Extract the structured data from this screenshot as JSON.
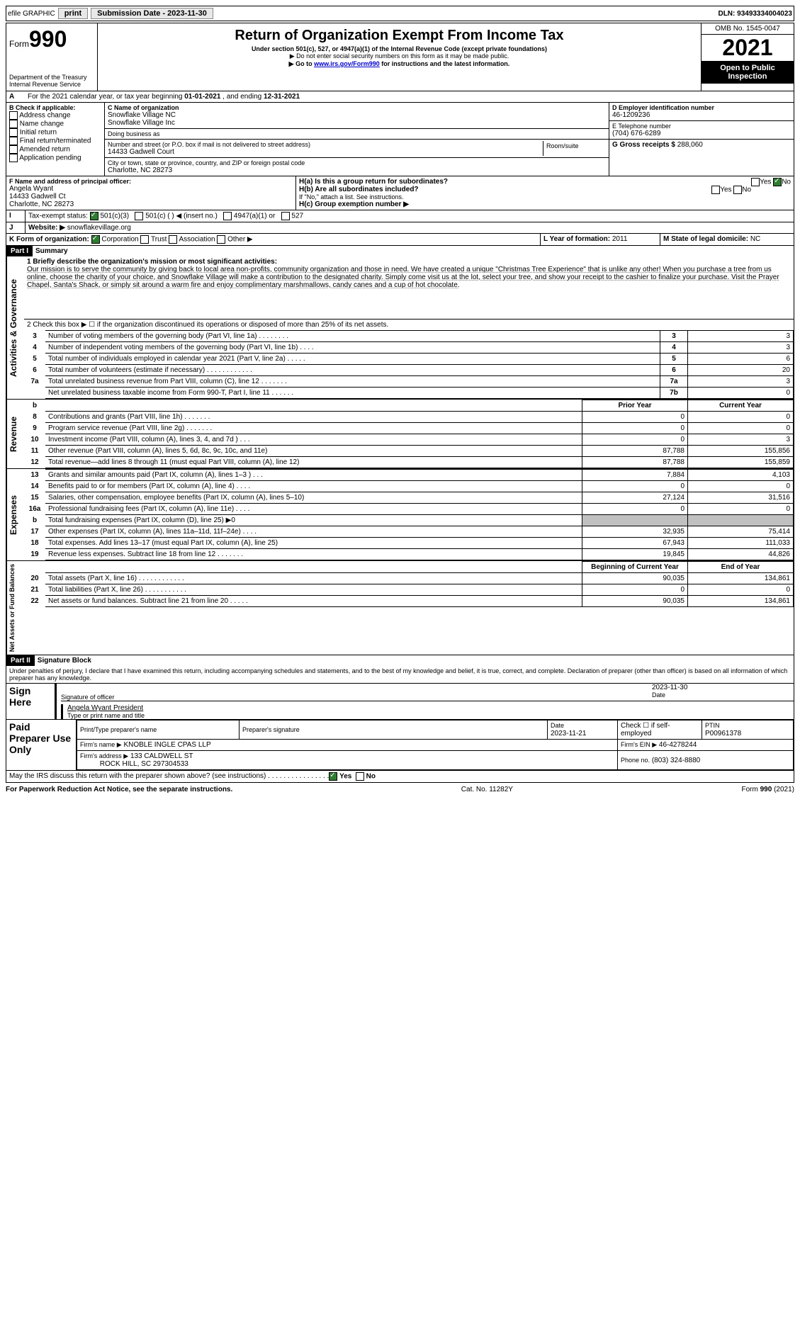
{
  "topbar": {
    "efile": "efile GRAPHIC",
    "print": "print",
    "submission_label": "Submission Date - 2023-11-30",
    "dln_label": "DLN: 93493334004023"
  },
  "header": {
    "form_word": "Form",
    "form_number": "990",
    "title": "Return of Organization Exempt From Income Tax",
    "subtitle": "Under section 501(c), 527, or 4947(a)(1) of the Internal Revenue Code (except private foundations)",
    "note1": "▶ Do not enter social security numbers on this form as it may be made public.",
    "note2_pre": "▶ Go to ",
    "note2_link": "www.irs.gov/Form990",
    "note2_post": " for instructions and the latest information.",
    "dept": "Department of the Treasury",
    "irs": "Internal Revenue Service",
    "omb": "OMB No. 1545-0047",
    "year": "2021",
    "open": "Open to Public Inspection"
  },
  "periodA": {
    "text_pre": "For the 2021 calendar year, or tax year beginning ",
    "begin": "01-01-2021",
    "mid": " , and ending ",
    "end": "12-31-2021"
  },
  "boxB": {
    "label": "B Check if applicable:",
    "items": [
      "Address change",
      "Name change",
      "Initial return",
      "Final return/terminated",
      "Amended return",
      "Application pending"
    ]
  },
  "boxC": {
    "label": "C Name of organization",
    "name1": "Snowflake Village NC",
    "name2": "Snowflake Village Inc",
    "dba": "Doing business as",
    "addr_label": "Number and street (or P.O. box if mail is not delivered to street address)",
    "addr": "14433 Gadwell Court",
    "room_label": "Room/suite",
    "city_label": "City or town, state or province, country, and ZIP or foreign postal code",
    "city": "Charlotte, NC  28273"
  },
  "boxD": {
    "label": "D Employer identification number",
    "value": "46-1209236"
  },
  "boxE": {
    "label": "E Telephone number",
    "value": "(704) 676-6289"
  },
  "boxG": {
    "label": "G Gross receipts $",
    "value": "288,060"
  },
  "boxF": {
    "label": "F  Name and address of principal officer:",
    "name": "Angela Wyant",
    "addr1": "14433 Gadwell Ct",
    "addr2": "Charlotte, NC  28273"
  },
  "boxH": {
    "ha_label": "H(a)  Is this a group return for subordinates?",
    "hb_label": "H(b)  Are all subordinates included?",
    "hb_note": "If \"No,\" attach a list. See instructions.",
    "hc_label": "H(c)  Group exemption number ▶",
    "yes": "Yes",
    "no": "No"
  },
  "taxExempt": {
    "label": "Tax-exempt status:",
    "c3": "501(c)(3)",
    "c": "501(c) (    ) ◀ (insert no.)",
    "a1": "4947(a)(1) or",
    "s527": "527"
  },
  "rowJ": {
    "label": "J",
    "website_label": "Website: ▶",
    "website": "snowflakevillage.org"
  },
  "rowK": {
    "label": "K Form of organization:",
    "corp": "Corporation",
    "trust": "Trust",
    "assoc": "Association",
    "other": "Other ▶"
  },
  "rowL": {
    "label": "L Year of formation:",
    "value": "2011"
  },
  "rowM": {
    "label": "M State of legal domicile:",
    "value": "NC"
  },
  "partI": {
    "label": "Part I",
    "title": "Summary",
    "line1_label": "1  Briefly describe the organization's mission or most significant activities:",
    "mission": "Our mission is to serve the community by giving back to local area non-profits, community organization and those in need. We have created a unique \"Christmas Tree Experience\" that is unlike any other! When you purchase a tree from us online, choose the charity of your choice, and Snowflake Village will make a contribution to the designated charity. Simply come visit us at the lot, select your tree, and show your receipt to the cashier to finalize your purchase. Visit the Prayer Chapel, Santa's Shack, or simply sit around a warm fire and enjoy complimentary marshmallows, candy canes and a cup of hot chocolate.",
    "line2": "2  Check this box ▶ ☐ if the organization discontinued its operations or disposed of more than 25% of its net assets.",
    "sections": {
      "governance": "Activities & Governance",
      "revenue": "Revenue",
      "expenses": "Expenses",
      "netassets": "Net Assets or Fund Balances"
    },
    "cols": {
      "prior": "Prior Year",
      "current": "Current Year",
      "boy": "Beginning of Current Year",
      "eoy": "End of Year"
    },
    "lines_gov": [
      {
        "n": "3",
        "label": "Number of voting members of the governing body (Part VI, line 1a)  .    .    .    .    .    .    .    .",
        "box": "3",
        "val": "3"
      },
      {
        "n": "4",
        "label": "Number of independent voting members of the governing body (Part VI, line 1b)   .    .    .    .",
        "box": "4",
        "val": "3"
      },
      {
        "n": "5",
        "label": "Total number of individuals employed in calendar year 2021 (Part V, line 2a)   .    .    .    .    .",
        "box": "5",
        "val": "6"
      },
      {
        "n": "6",
        "label": "Total number of volunteers (estimate if necessary)   .    .    .    .    .    .    .    .    .    .    .    .",
        "box": "6",
        "val": "20"
      },
      {
        "n": "7a",
        "label": "Total unrelated business revenue from Part VIII, column (C), line 12   .    .    .    .    .    .    .",
        "box": "7a",
        "val": "3"
      },
      {
        "n": "",
        "label": "Net unrelated business taxable income from Form 990-T, Part I, line 11   .    .    .    .    .    .",
        "box": "7b",
        "val": "0"
      }
    ],
    "lines_rev": [
      {
        "n": "8",
        "label": "Contributions and grants (Part VIII, line 1h)   .    .    .    .    .    .    .",
        "p": "0",
        "c": "0"
      },
      {
        "n": "9",
        "label": "Program service revenue (Part VIII, line 2g)   .    .    .    .    .    .    .",
        "p": "0",
        "c": "0"
      },
      {
        "n": "10",
        "label": "Investment income (Part VIII, column (A), lines 3, 4, and 7d )   .    .    .",
        "p": "0",
        "c": "3"
      },
      {
        "n": "11",
        "label": "Other revenue (Part VIII, column (A), lines 5, 6d, 8c, 9c, 10c, and 11e)",
        "p": "87,788",
        "c": "155,856"
      },
      {
        "n": "12",
        "label": "Total revenue—add lines 8 through 11 (must equal Part VIII, column (A), line 12)",
        "p": "87,788",
        "c": "155,859"
      }
    ],
    "lines_exp": [
      {
        "n": "13",
        "label": "Grants and similar amounts paid (Part IX, column (A), lines 1–3 )   .    .    .",
        "p": "7,884",
        "c": "4,103"
      },
      {
        "n": "14",
        "label": "Benefits paid to or for members (Part IX, column (A), line 4)   .    .    .    .",
        "p": "0",
        "c": "0"
      },
      {
        "n": "15",
        "label": "Salaries, other compensation, employee benefits (Part IX, column (A), lines 5–10)",
        "p": "27,124",
        "c": "31,516"
      },
      {
        "n": "16a",
        "label": "Professional fundraising fees (Part IX, column (A), line 11e)   .    .    .    .",
        "p": "0",
        "c": "0"
      },
      {
        "n": "b",
        "label": "Total fundraising expenses (Part IX, column (D), line 25) ▶0",
        "p": "shade",
        "c": "shade"
      },
      {
        "n": "17",
        "label": "Other expenses (Part IX, column (A), lines 11a–11d, 11f–24e)   .    .    .    .",
        "p": "32,935",
        "c": "75,414"
      },
      {
        "n": "18",
        "label": "Total expenses. Add lines 13–17 (must equal Part IX, column (A), line 25)",
        "p": "67,943",
        "c": "111,033"
      },
      {
        "n": "19",
        "label": "Revenue less expenses. Subtract line 18 from line 12   .    .    .    .    .    .    .",
        "p": "19,845",
        "c": "44,826"
      }
    ],
    "lines_net": [
      {
        "n": "20",
        "label": "Total assets (Part X, line 16)   .    .    .    .    .    .    .    .    .    .    .    .",
        "p": "90,035",
        "c": "134,861"
      },
      {
        "n": "21",
        "label": "Total liabilities (Part X, line 26)   .    .    .    .    .    .    .    .    .    .    .",
        "p": "0",
        "c": "0"
      },
      {
        "n": "22",
        "label": "Net assets or fund balances. Subtract line 21 from line 20   .    .    .    .    .",
        "p": "90,035",
        "c": "134,861"
      }
    ]
  },
  "partII": {
    "label": "Part II",
    "title": "Signature Block",
    "perjury": "Under penalties of perjury, I declare that I have examined this return, including accompanying schedules and statements, and to the best of my knowledge and belief, it is true, correct, and complete. Declaration of preparer (other than officer) is based on all information of which preparer has any knowledge.",
    "sign_here": "Sign Here",
    "sig_officer": "Signature of officer",
    "date_label": "Date",
    "sig_date": "2023-11-30",
    "officer_name": "Angela Wyant President",
    "type_name": "Type or print name and title",
    "paid": "Paid Preparer Use Only",
    "prep_name_label": "Print/Type preparer's name",
    "prep_sig_label": "Preparer's signature",
    "prep_date": "2023-11-21",
    "self_emp": "Check ☐ if self-employed",
    "ptin_label": "PTIN",
    "ptin": "P00961378",
    "firm_name_label": "Firm's name    ▶",
    "firm_name": "KNOBLE INGLE CPAS LLP",
    "firm_ein_label": "Firm's EIN ▶",
    "firm_ein": "46-4278244",
    "firm_addr_label": "Firm's address ▶",
    "firm_addr1": "133 CALDWELL ST",
    "firm_addr2": "ROCK HILL, SC  297304533",
    "phone_label": "Phone no.",
    "phone": "(803) 324-8880",
    "discuss": "May the IRS discuss this return with the preparer shown above? (see instructions)    .    .    .    .    .    .    .    .    .    .    .    .    .    .    .    .",
    "yes": "Yes",
    "no": "No"
  },
  "footer": {
    "pra": "For Paperwork Reduction Act Notice, see the separate instructions.",
    "cat": "Cat. No. 11282Y",
    "form": "Form 990 (2021)"
  }
}
